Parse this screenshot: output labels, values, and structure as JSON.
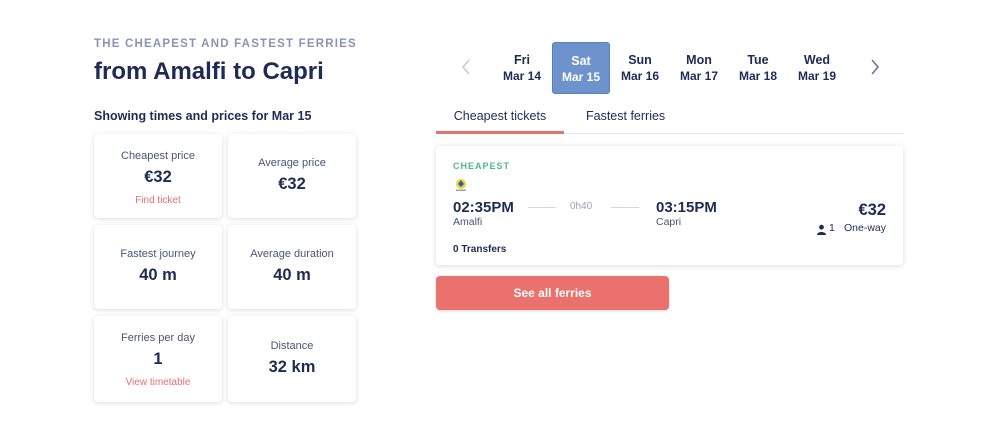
{
  "header": {
    "eyebrow": "THE CHEAPEST AND FASTEST FERRIES",
    "title": "from Amalfi to Capri",
    "subtitle": "Showing times and prices for Mar 15"
  },
  "stats": {
    "cheapest_price": {
      "label": "Cheapest price",
      "value": "€32",
      "link": "Find ticket"
    },
    "average_price": {
      "label": "Average price",
      "value": "€32"
    },
    "fastest_journey": {
      "label": "Fastest journey",
      "value": "40 m"
    },
    "average_duration": {
      "label": "Average duration",
      "value": "40 m"
    },
    "ferries_per_day": {
      "label": "Ferries per day",
      "value": "1",
      "link": "View timetable"
    },
    "distance": {
      "label": "Distance",
      "value": "32 km"
    }
  },
  "date_strip": {
    "prev_icon": "chevron-left-icon",
    "next_icon": "chevron-right-icon",
    "dates": [
      {
        "dow": "Fri",
        "date": "Mar 14"
      },
      {
        "dow": "Sat",
        "date": "Mar 15",
        "selected": true
      },
      {
        "dow": "Sun",
        "date": "Mar 16"
      },
      {
        "dow": "Mon",
        "date": "Mar 17"
      },
      {
        "dow": "Tue",
        "date": "Mar 18"
      },
      {
        "dow": "Wed",
        "date": "Mar 19"
      }
    ]
  },
  "tabs": [
    {
      "label": "Cheapest tickets",
      "active": true
    },
    {
      "label": "Fastest ferries",
      "active": false
    }
  ],
  "ticket": {
    "badge": "CHEAPEST",
    "operator_icon": "operator-logo-icon",
    "departure_time": "02:35PM",
    "departure_place": "Amalfi",
    "duration": "0h40",
    "arrival_time": "03:15PM",
    "arrival_place": "Capri",
    "transfers": "0 Transfers",
    "price": "€32",
    "passenger_icon": "person-icon",
    "passengers": "1",
    "trip_type": "One-way"
  },
  "cta": {
    "label": "See all ferries"
  },
  "colors": {
    "primary_text": "#1f2a55",
    "accent_red": "#ea716c",
    "selected_date": "#6e93cc",
    "badge_green": "#4fb98a"
  }
}
